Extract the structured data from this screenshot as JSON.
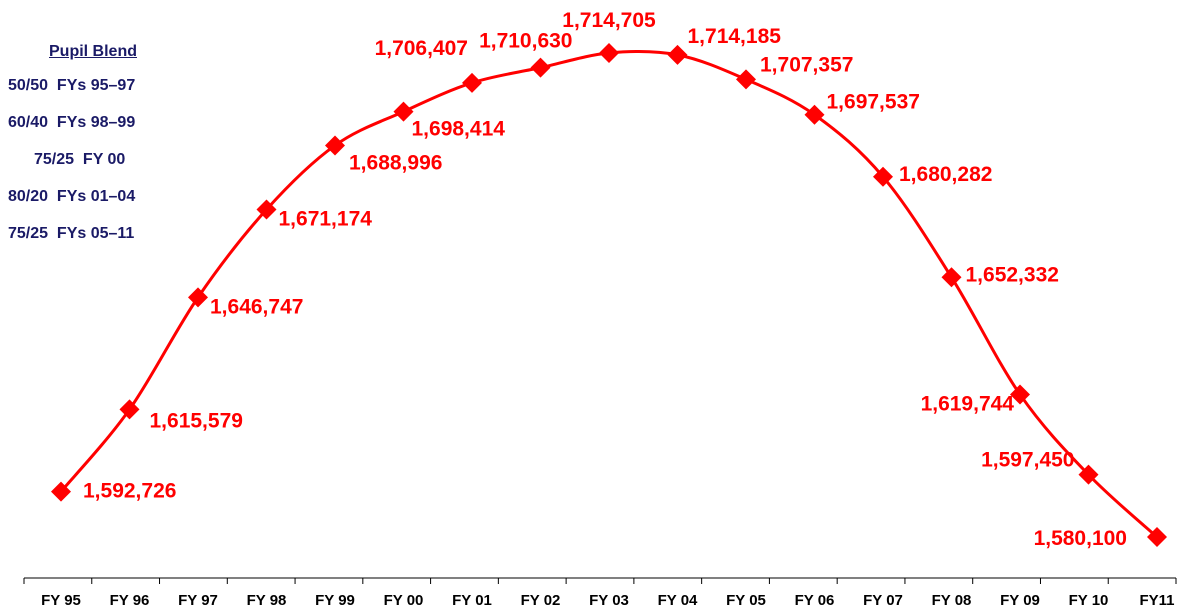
{
  "legend": {
    "title": "Pupil Blend",
    "rows": [
      "50/50  FYs 95–97",
      "60/40  FYs 98–99",
      "75/25  FY 00",
      "80/20  FYs 01–04",
      "75/25  FYs 05–11"
    ]
  },
  "chart_data": {
    "type": "line",
    "categories": [
      "FY 95",
      "FY 96",
      "FY 97",
      "FY 98",
      "FY 99",
      "FY 00",
      "FY 01",
      "FY 02",
      "FY 03",
      "FY 04",
      "FY 05",
      "FY 06",
      "FY 07",
      "FY 08",
      "FY 09",
      "FY 10",
      "FY11"
    ],
    "series": [
      {
        "values": [
          1592726,
          1615579,
          1646747,
          1671174,
          1688996,
          1698414,
          1706407,
          1710630,
          1714705,
          1714185,
          1707357,
          1697537,
          1680282,
          1652332,
          1619744,
          1597450,
          1580100
        ],
        "labels": [
          "1,592,726",
          "1,615,579",
          "1,646,747",
          "1,671,174",
          "1,688,996",
          "1,698,414",
          "1,706,407",
          "1,710,630",
          "1,714,705",
          "1,714,185",
          "1,707,357",
          "1,697,537",
          "1,680,282",
          "1,652,332",
          "1,619,744",
          "1,597,450",
          "1,580,100"
        ]
      }
    ],
    "title": "",
    "xlabel": "",
    "ylabel": "",
    "grid": false,
    "marker": "diamond",
    "line_color": "#ff0000",
    "label_color": "#ff0000",
    "legend_color": "#1a1a66"
  }
}
